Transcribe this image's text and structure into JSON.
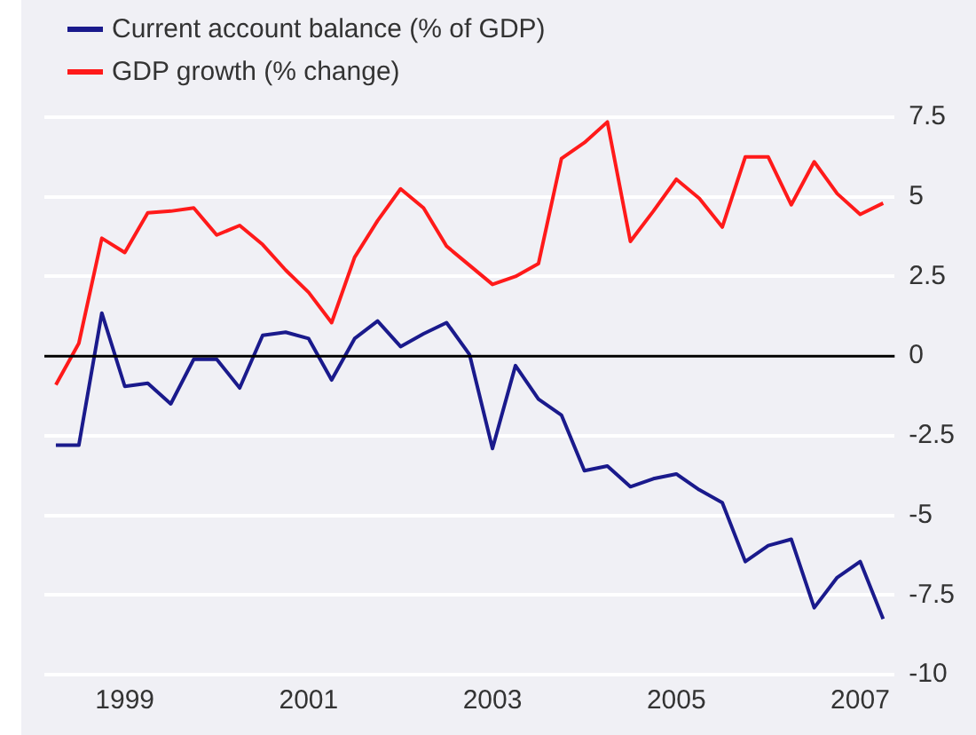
{
  "chart_data": {
    "type": "line",
    "categories": [
      null,
      null,
      null,
      "1999",
      null,
      null,
      null,
      null,
      null,
      null,
      null,
      "2001",
      null,
      null,
      null,
      null,
      null,
      null,
      null,
      "2003",
      null,
      null,
      null,
      null,
      null,
      null,
      null,
      "2005",
      null,
      null,
      null,
      null,
      null,
      null,
      null,
      "2007",
      null
    ],
    "series": [
      {
        "name": "Current account balance (% of GDP)",
        "color": "#1a1a8c",
        "values": [
          -2.8,
          -2.8,
          1.35,
          -0.95,
          -0.85,
          -1.5,
          -0.1,
          -0.1,
          -1.0,
          0.65,
          0.75,
          0.55,
          -0.75,
          0.55,
          1.1,
          0.3,
          0.7,
          1.05,
          0.05,
          -2.9,
          -0.3,
          -1.35,
          -1.85,
          -3.6,
          -3.45,
          -4.1,
          -3.85,
          -3.7,
          -4.2,
          -4.6,
          -6.45,
          -5.95,
          -5.75,
          -7.9,
          -6.95,
          -6.45,
          -8.25
        ]
      },
      {
        "name": "GDP growth (% change)",
        "color": "#ff1a1a",
        "values": [
          -0.9,
          0.4,
          3.7,
          3.25,
          4.5,
          4.55,
          4.65,
          3.8,
          4.1,
          3.5,
          2.7,
          2.0,
          1.05,
          3.1,
          4.25,
          5.25,
          4.65,
          3.45,
          2.85,
          2.25,
          2.5,
          2.9,
          6.2,
          6.7,
          7.35,
          3.6,
          4.55,
          5.55,
          4.95,
          4.05,
          6.25,
          6.25,
          4.75,
          6.1,
          5.1,
          4.45,
          4.8
        ]
      }
    ],
    "ylim": [
      -10,
      7.5
    ],
    "yticks": [
      -10,
      -7.5,
      -5,
      -2.5,
      0,
      2.5,
      5,
      7.5
    ],
    "ref_lines": [
      {
        "axis": "y",
        "value": 0,
        "color": "#000000"
      }
    ],
    "grid": "y",
    "legend": "top left",
    "marker": "none",
    "line_style": "solid"
  }
}
